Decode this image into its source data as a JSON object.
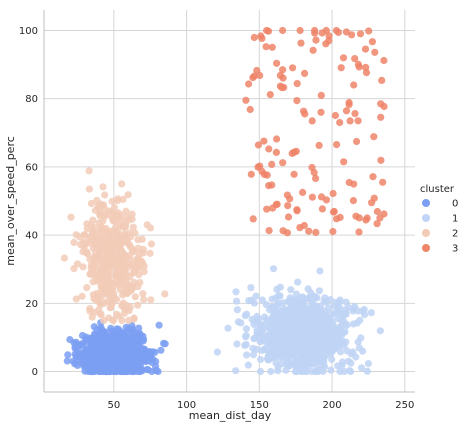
{
  "chart_data": {
    "type": "scatter",
    "title": "",
    "xlabel": "mean_dist_day",
    "ylabel": "mean_over_speed_perc",
    "xlim": [
      2,
      257
    ],
    "ylim": [
      -6,
      106
    ],
    "xticks": [
      50,
      100,
      150,
      200,
      250
    ],
    "yticks": [
      0,
      20,
      40,
      60,
      80,
      100
    ],
    "grid": true,
    "legend": {
      "title": "cluster",
      "placement": "right"
    },
    "series": [
      {
        "name": "0",
        "color": "#7b9ff2",
        "cluster_summary": {
          "x_range": [
            14,
            86
          ],
          "y_range": [
            0,
            18
          ],
          "approx_count": 1400
        }
      },
      {
        "name": "1",
        "color": "#c0d4f5",
        "cluster_summary": {
          "x_range": [
            117,
            245
          ],
          "y_range": [
            0,
            38
          ],
          "approx_count": 1050
        }
      },
      {
        "name": "2",
        "color": "#f2cbb7",
        "cluster_summary": {
          "x_range": [
            16,
            85
          ],
          "y_range": [
            15,
            64
          ],
          "approx_count": 500
        }
      },
      {
        "name": "3",
        "color": "#ee8468",
        "cluster_summary": {
          "x_range": [
            140,
            236
          ],
          "y_range": [
            40,
            100
          ],
          "approx_count": 150
        }
      }
    ]
  }
}
